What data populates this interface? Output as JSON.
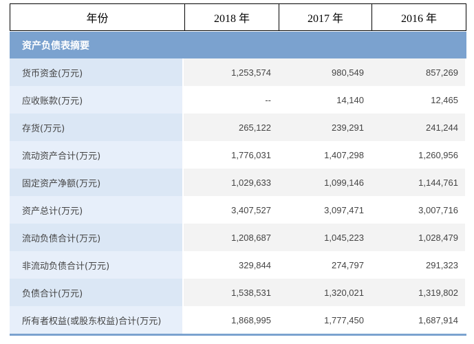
{
  "header": {
    "col_label": "年份",
    "years": [
      "2018 年",
      "2017 年",
      "2016 年"
    ]
  },
  "section_title": "资产负债表摘要",
  "rows": [
    {
      "label": "货币资金(万元)",
      "values": [
        "1,253,574",
        "980,549",
        "857,269"
      ]
    },
    {
      "label": "应收账款(万元)",
      "values": [
        "--",
        "14,140",
        "12,465"
      ]
    },
    {
      "label": "存货(万元)",
      "values": [
        "265,122",
        "239,291",
        "241,244"
      ]
    },
    {
      "label": "流动资产合计(万元)",
      "values": [
        "1,776,031",
        "1,407,298",
        "1,260,956"
      ]
    },
    {
      "label": "固定资产净额(万元)",
      "values": [
        "1,029,633",
        "1,099,146",
        "1,144,761"
      ]
    },
    {
      "label": "资产总计(万元)",
      "values": [
        "3,407,527",
        "3,097,471",
        "3,007,716"
      ]
    },
    {
      "label": "流动负债合计(万元)",
      "values": [
        "1,208,687",
        "1,045,223",
        "1,028,479"
      ]
    },
    {
      "label": "非流动负债合计(万元)",
      "values": [
        "329,844",
        "274,797",
        "291,323"
      ]
    },
    {
      "label": "负债合计(万元)",
      "values": [
        "1,538,531",
        "1,320,021",
        "1,319,802"
      ]
    },
    {
      "label": "所有者权益(或股东权益)合计(万元)",
      "values": [
        "1,868,995",
        "1,777,450",
        "1,687,914"
      ]
    }
  ],
  "colors": {
    "section_bg": "#7ba2cf",
    "label_bg": "#dbe7f5",
    "stripe_bg": "#f3f3f3"
  }
}
